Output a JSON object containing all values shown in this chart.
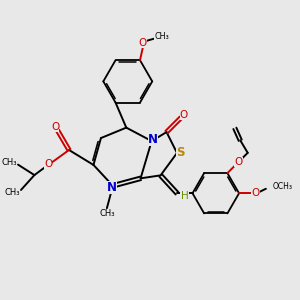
{
  "bg_color": "#e8e8e8",
  "bond_color": "#000000",
  "N_color": "#0000cc",
  "O_color": "#cc0000",
  "S_color": "#b8860b",
  "H_color": "#6b8e00",
  "figsize": [
    3.0,
    3.0
  ],
  "dpi": 100,
  "xlim": [
    0,
    10
  ],
  "ylim": [
    0,
    10
  ]
}
